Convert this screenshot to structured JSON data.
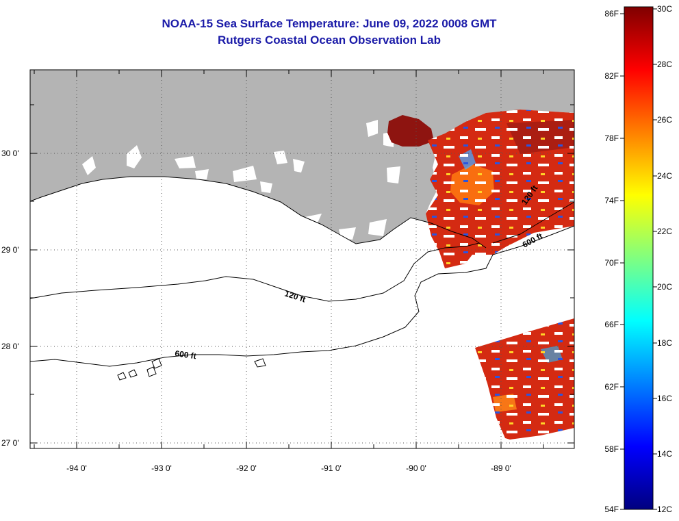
{
  "title": {
    "line1": "NOAA-15 Sea Surface Temperature:  June 09, 2022 0008 GMT",
    "line2": "Rutgers Coastal Ocean Observation Lab"
  },
  "map": {
    "lat_labels": [
      "30 0'",
      "29 0'",
      "28 0'",
      "27 0'"
    ],
    "lon_labels": [
      "-94 0'",
      "-93 0'",
      "-92 0'",
      "-91 0'",
      "-90 0'",
      "-89 0'"
    ],
    "contours": {
      "shelf_120": "120 ft",
      "shelf_600": "600 ft",
      "east_120": "120 ft",
      "east_600": "600 ft"
    }
  },
  "colorbar": {
    "fahrenheit_labels": [
      "86F",
      "82F",
      "78F",
      "74F",
      "70F",
      "66F",
      "62F",
      "58F",
      "54F"
    ],
    "celsius_labels": [
      "30C",
      "28C",
      "26C",
      "24C",
      "22C",
      "20C",
      "18C",
      "16C",
      "14C",
      "12C"
    ],
    "range_celsius": [
      12,
      30
    ],
    "colors": [
      "#00007f",
      "#0000ff",
      "#0080ff",
      "#00ffff",
      "#80ff80",
      "#ffff00",
      "#ff8000",
      "#ff0000",
      "#7f0000"
    ]
  },
  "colors": {
    "land": "#b4b4b4",
    "title": "#1a1aa8",
    "sst_warm": "#d42a12",
    "sst_dark": "#8e1410"
  }
}
